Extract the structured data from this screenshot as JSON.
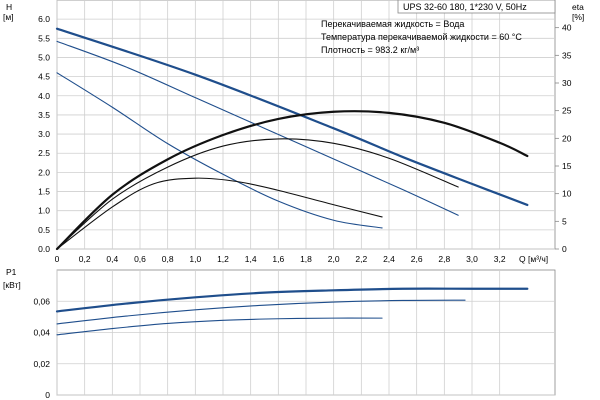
{
  "chart_data": [
    {
      "type": "line",
      "name": "head_and_efficiency",
      "title": "UPS 32-60 180, 1*230 V, 50Hz",
      "annotations": [
        "Перекачиваемая жидкость = Вода",
        "Температура перекачиваемой жидкости = 60 °C",
        "Плотность = 983.2 кг/м³"
      ],
      "xlabel": "Q [м³/ч]",
      "ylabel": [
        "H",
        "[м]"
      ],
      "y2label": [
        "eta",
        "[%]"
      ],
      "xlim": [
        0,
        3.6
      ],
      "ylim": [
        0,
        6.5
      ],
      "y2lim": [
        0,
        45
      ],
      "x_ticks": [
        "0",
        "0,2",
        "0,4",
        "0,6",
        "0,8",
        "1,0",
        "1,2",
        "1,4",
        "1,6",
        "1,8",
        "2,0",
        "2,2",
        "2,4",
        "2,6",
        "2,8",
        "3,0",
        "3,2"
      ],
      "y_ticks": [
        "0.0",
        "0.5",
        "1.0",
        "1.5",
        "2.0",
        "2.5",
        "3.0",
        "3.5",
        "4.0",
        "4.5",
        "5.0",
        "5.5",
        "6.0"
      ],
      "y2_ticks": [
        "0",
        "5",
        "10",
        "15",
        "20",
        "25",
        "30",
        "35",
        "40"
      ],
      "grid": true,
      "series": [
        {
          "axis": "left",
          "color": "#1f4e8c",
          "width": 2.2,
          "x": [
            0,
            1.0,
            2.0,
            2.5,
            3.0,
            3.4
          ],
          "y": [
            5.75,
            4.55,
            3.15,
            2.4,
            1.7,
            1.15
          ]
        },
        {
          "axis": "left",
          "color": "#1f4e8c",
          "width": 1.1,
          "x": [
            0,
            0.5,
            1.0,
            1.5,
            2.0,
            2.5,
            2.9
          ],
          "y": [
            5.42,
            4.75,
            3.95,
            3.15,
            2.35,
            1.55,
            0.88
          ]
        },
        {
          "axis": "left",
          "color": "#1f4e8c",
          "width": 1.1,
          "x": [
            0,
            0.4,
            0.8,
            1.2,
            1.6,
            2.0,
            2.35
          ],
          "y": [
            4.6,
            3.7,
            2.75,
            1.95,
            1.25,
            0.75,
            0.55
          ]
        },
        {
          "axis": "right",
          "color": "#111111",
          "width": 2.2,
          "x": [
            0,
            0.4,
            0.8,
            1.2,
            1.6,
            2.0,
            2.4,
            2.8,
            3.2,
            3.4
          ],
          "y": [
            0,
            9.8,
            16.2,
            20.6,
            23.5,
            24.8,
            24.6,
            22.8,
            19.2,
            16.8
          ]
        },
        {
          "axis": "right",
          "color": "#111111",
          "width": 1.1,
          "x": [
            0,
            0.4,
            0.8,
            1.2,
            1.6,
            2.0,
            2.4,
            2.9
          ],
          "y": [
            0,
            9.0,
            14.8,
            18.6,
            19.9,
            19.1,
            16.4,
            11.2
          ]
        },
        {
          "axis": "right",
          "color": "#111111",
          "width": 1.1,
          "x": [
            0,
            0.4,
            0.7,
            1.0,
            1.3,
            1.6,
            2.0,
            2.35
          ],
          "y": [
            0,
            7.6,
            11.8,
            12.8,
            12.2,
            10.6,
            8.0,
            5.8
          ]
        }
      ]
    },
    {
      "type": "line",
      "name": "power",
      "xlabel": "",
      "ylabel": [
        "P1",
        "[кВт]"
      ],
      "xlim": [
        0,
        3.6
      ],
      "ylim": [
        0,
        0.08
      ],
      "y_ticks": [
        "0",
        "0,02",
        "0,04",
        "0,06"
      ],
      "grid": true,
      "series": [
        {
          "color": "#1f4e8c",
          "width": 2.2,
          "x": [
            0,
            0.5,
            1.0,
            1.5,
            2.0,
            2.5,
            3.0,
            3.4
          ],
          "y": [
            0.0535,
            0.0585,
            0.0625,
            0.0655,
            0.067,
            0.068,
            0.068,
            0.068
          ]
        },
        {
          "color": "#1f4e8c",
          "width": 1.1,
          "x": [
            0,
            0.5,
            1.0,
            1.5,
            2.0,
            2.5,
            2.95
          ],
          "y": [
            0.0455,
            0.0505,
            0.0545,
            0.0575,
            0.0595,
            0.0605,
            0.0607
          ]
        },
        {
          "color": "#1f4e8c",
          "width": 1.1,
          "x": [
            0,
            0.4,
            0.8,
            1.2,
            1.6,
            2.0,
            2.35
          ],
          "y": [
            0.0385,
            0.0425,
            0.0458,
            0.0478,
            0.0488,
            0.0492,
            0.0492
          ]
        }
      ]
    }
  ]
}
